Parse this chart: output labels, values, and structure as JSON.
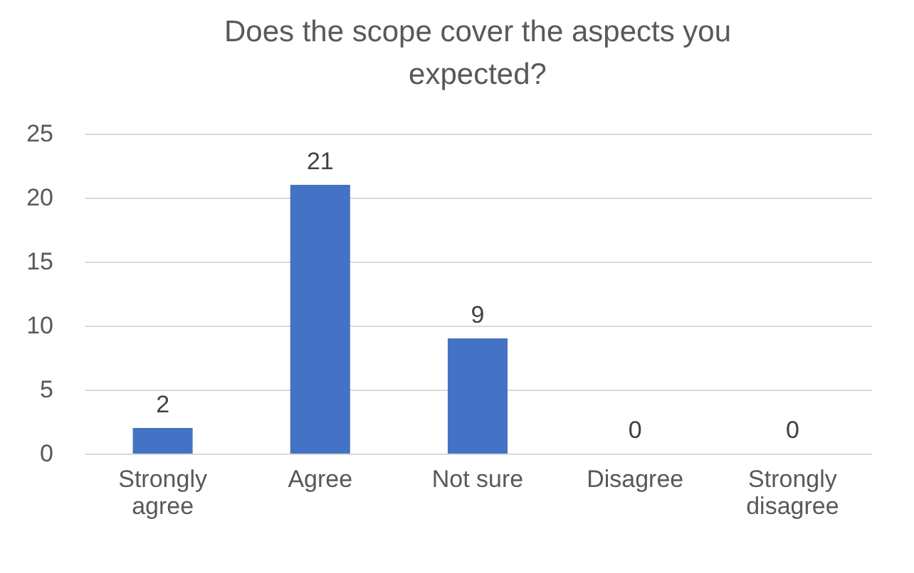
{
  "chart_data": {
    "type": "bar",
    "title": "Does the scope cover the aspects you expected?",
    "categories": [
      "Strongly agree",
      "Agree",
      "Not sure",
      "Disagree",
      "Strongly disagree"
    ],
    "values": [
      2,
      21,
      9,
      0,
      0
    ],
    "color": "#4472c4",
    "ylim": [
      0,
      25
    ],
    "yticks": [
      0,
      5,
      10,
      15,
      20,
      25
    ],
    "grid": "y",
    "data_labels": true
  }
}
